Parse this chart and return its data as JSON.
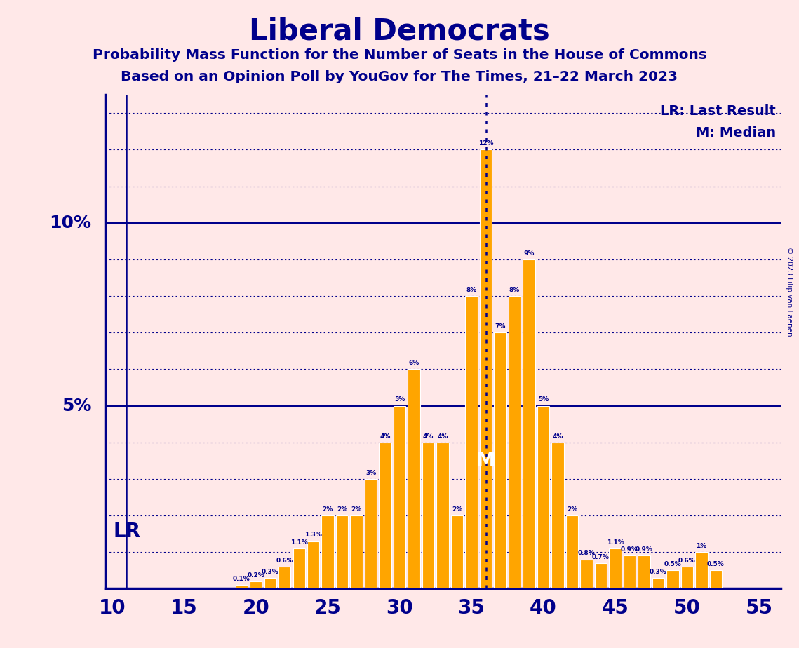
{
  "title": "Liberal Democrats",
  "subtitle1": "Probability Mass Function for the Number of Seats in the House of Commons",
  "subtitle2": "Based on an Opinion Poll by YouGov for The Times, 21–22 March 2023",
  "copyright": "© 2023 Filip van Laenen",
  "bar_color": "#FFA500",
  "background_color": "#FFE8E8",
  "text_color": "#00008B",
  "seats": [
    10,
    11,
    12,
    13,
    14,
    15,
    16,
    17,
    18,
    19,
    20,
    21,
    22,
    23,
    24,
    25,
    26,
    27,
    28,
    29,
    30,
    31,
    32,
    33,
    34,
    35,
    36,
    37,
    38,
    39,
    40,
    41,
    42,
    43,
    44,
    45,
    46,
    47,
    48,
    49,
    50,
    51,
    52,
    53,
    54,
    55
  ],
  "probs": [
    0.0,
    0.0,
    0.0,
    0.0,
    0.0,
    0.0,
    0.0,
    0.0,
    0.0,
    0.1,
    0.2,
    0.3,
    0.6,
    1.1,
    1.3,
    2.0,
    2.0,
    2.0,
    3.0,
    4.0,
    5.0,
    6.0,
    4.0,
    4.0,
    2.0,
    8.0,
    12.0,
    7.0,
    8.0,
    9.0,
    5.0,
    4.0,
    2.0,
    0.8,
    0.7,
    1.1,
    0.9,
    0.9,
    0.3,
    0.5,
    0.6,
    1.0,
    0.5,
    0.0,
    0.0,
    0.0
  ],
  "lr_seat": 11,
  "median_seat": 36,
  "xlim": [
    9.5,
    56.5
  ],
  "ylim": [
    0,
    13.5
  ],
  "xticks": [
    10,
    15,
    20,
    25,
    30,
    35,
    40,
    45,
    50,
    55
  ],
  "ytick_lines": [
    1,
    2,
    3,
    4,
    5,
    6,
    7,
    8,
    9,
    10,
    11,
    12,
    13
  ],
  "solid_yticks": [
    5,
    10
  ],
  "legend_lr_line_style": "solid",
  "legend_m_line_style": "dotted",
  "figsize": [
    11.39,
    9.24
  ],
  "dpi": 100
}
